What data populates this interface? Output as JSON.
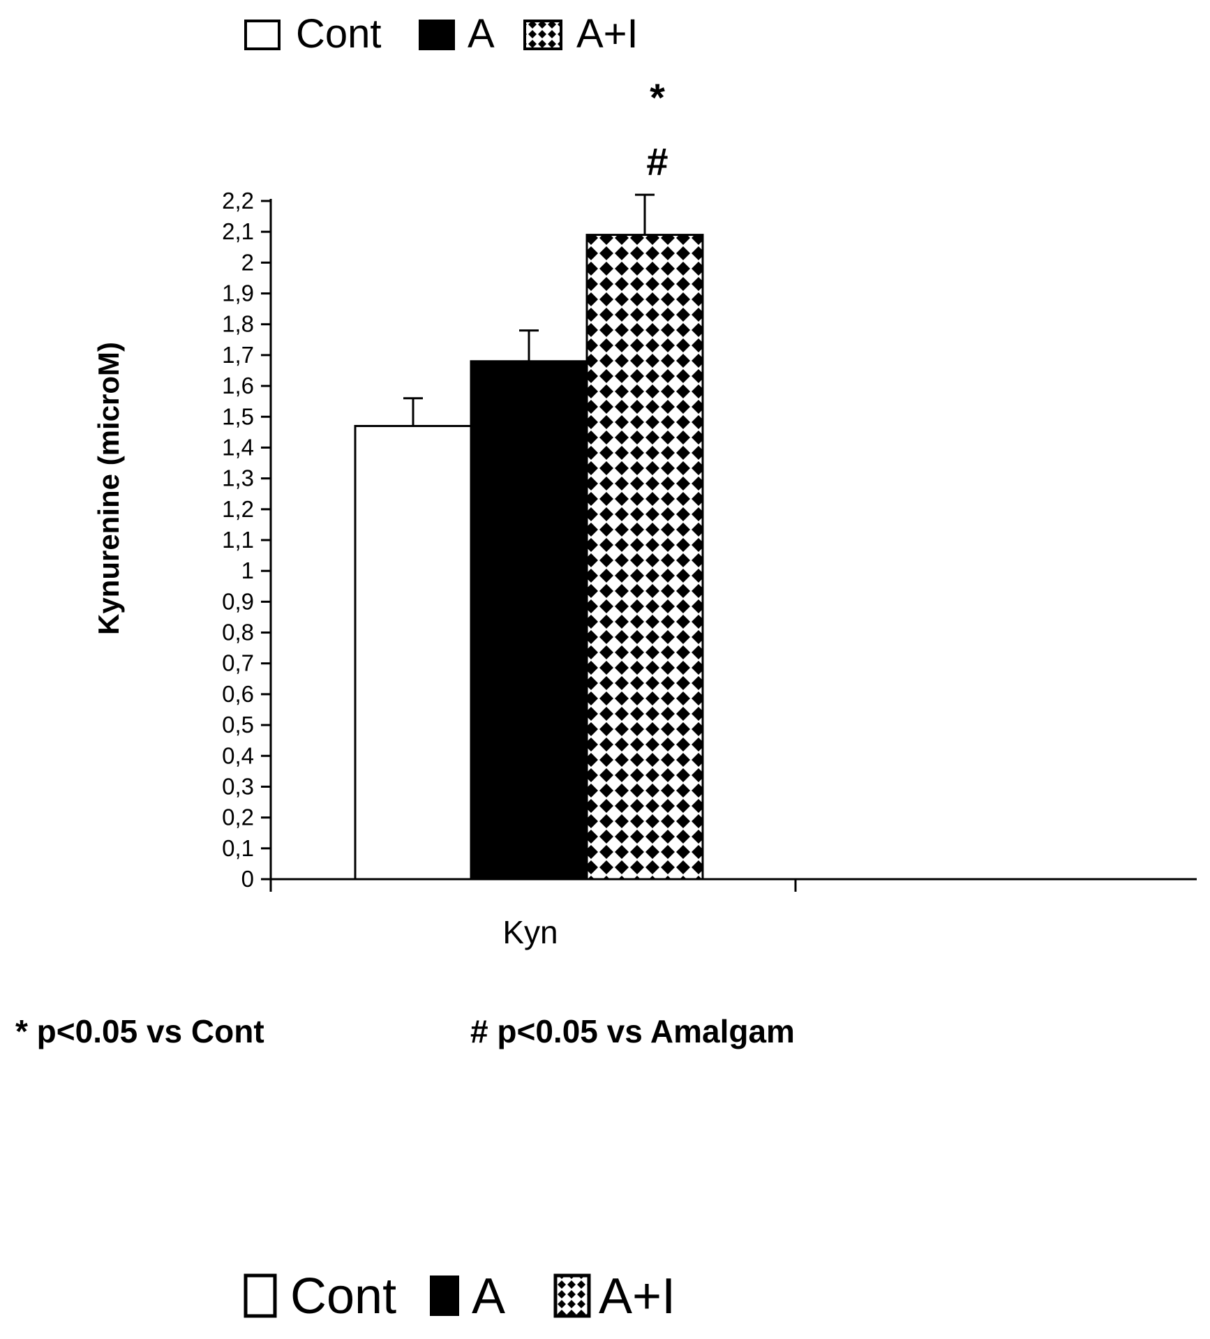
{
  "chart_data": {
    "type": "bar",
    "categories": [
      "Kyn"
    ],
    "series": [
      {
        "name": "Cont",
        "values": [
          1.47
        ],
        "error": [
          0.09
        ],
        "fill": "white"
      },
      {
        "name": "A",
        "values": [
          1.68
        ],
        "error": [
          0.1
        ],
        "fill": "black"
      },
      {
        "name": "A+I",
        "values": [
          2.09
        ],
        "error": [
          0.13
        ],
        "fill": "diamond-pattern",
        "markers": [
          "*",
          "#"
        ]
      }
    ],
    "yticks": [
      "0",
      "0,1",
      "0,2",
      "0,3",
      "0,4",
      "0,5",
      "0,6",
      "0,7",
      "0,8",
      "0,9",
      "1",
      "1,1",
      "1,2",
      "1,3",
      "1,4",
      "1,5",
      "1,6",
      "1,7",
      "1,8",
      "1,9",
      "2",
      "2,1",
      "2,2"
    ],
    "ylim": [
      0,
      2.2
    ],
    "ylabel": "Kynurenine (microM)",
    "xlabel": "",
    "legend_position": "top",
    "notes": [
      "* p<0.05 vs Cont",
      "# p<0.05 vs Amalgam"
    ],
    "legend_repeat": [
      "Cont",
      "A",
      "A+I"
    ],
    "colors": {
      "axis": "#000000",
      "background": "#ffffff",
      "bar_a": "#000000",
      "bar_cont": "#ffffff"
    }
  }
}
